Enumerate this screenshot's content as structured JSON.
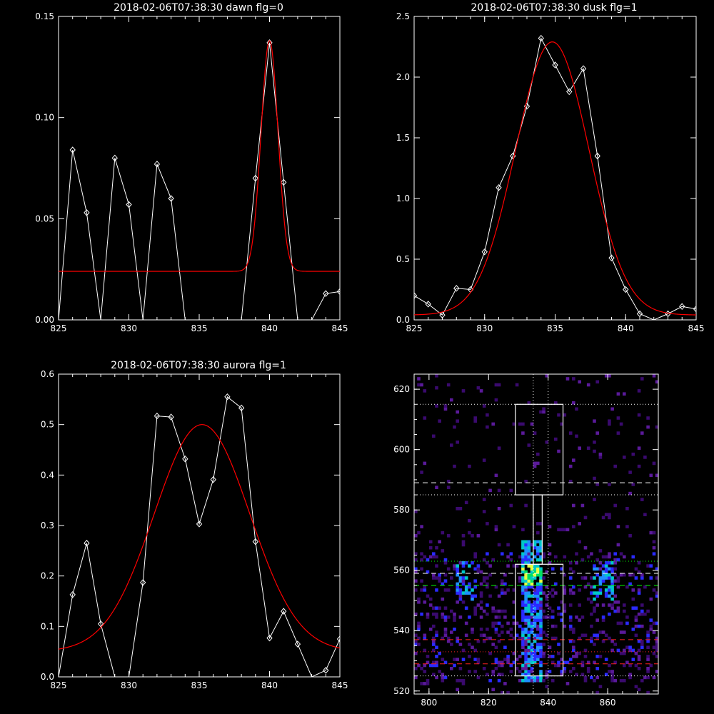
{
  "chart_data": [
    {
      "type": "line",
      "title": "2018-02-06T07:38:30 dawn flg=0",
      "xlim": [
        825,
        845
      ],
      "ylim": [
        0,
        0.15
      ],
      "xticks": [
        825,
        830,
        835,
        840,
        845
      ],
      "yticks": [
        0.0,
        0.05,
        0.1,
        0.15
      ],
      "ytick_labels": [
        "0.00",
        "0.05",
        "0.10",
        "0.15"
      ],
      "series": [
        {
          "color": "#ffffff",
          "markers": "diamond",
          "x": [
            825,
            826,
            827,
            828,
            829,
            830,
            831,
            832,
            833,
            834,
            835,
            836,
            837,
            838,
            839,
            840,
            841,
            842,
            843,
            844,
            845
          ],
          "y": [
            0.0,
            0.084,
            0.053,
            0.0,
            0.08,
            0.057,
            0.0,
            0.077,
            0.06,
            0.0,
            0.0,
            0.0,
            0.0,
            0.0,
            0.07,
            0.137,
            0.068,
            0.0,
            0.0,
            0.013,
            0.014
          ]
        },
        {
          "color": "#ff0000",
          "fit": "gaussian",
          "baseline": 0.024,
          "amplitude": 0.114,
          "center": 840.0,
          "sigma": 0.6
        }
      ]
    },
    {
      "type": "line",
      "title": "2018-02-06T07:38:30 dusk flg=1",
      "xlim": [
        825,
        845
      ],
      "ylim": [
        0,
        2.5
      ],
      "xticks": [
        825,
        830,
        835,
        840,
        845
      ],
      "yticks": [
        0.0,
        0.5,
        1.0,
        1.5,
        2.0,
        2.5
      ],
      "ytick_labels": [
        "0.0",
        "0.5",
        "1.0",
        "1.5",
        "2.0",
        "2.5"
      ],
      "series": [
        {
          "color": "#ffffff",
          "markers": "diamond",
          "x": [
            825,
            826,
            827,
            828,
            829,
            830,
            831,
            832,
            833,
            834,
            835,
            836,
            837,
            838,
            839,
            840,
            841,
            842,
            843,
            844,
            845
          ],
          "y": [
            0.2,
            0.13,
            0.04,
            0.26,
            0.25,
            0.56,
            1.09,
            1.35,
            1.76,
            2.32,
            2.1,
            1.88,
            2.07,
            1.35,
            0.51,
            0.25,
            0.05,
            0.0,
            0.05,
            0.11,
            0.09
          ]
        },
        {
          "color": "#ff0000",
          "fit": "gaussian",
          "baseline": 0.04,
          "amplitude": 2.25,
          "center": 834.8,
          "sigma": 2.6
        }
      ]
    },
    {
      "type": "line",
      "title": "2018-02-06T07:38:30 aurora flg=1",
      "xlim": [
        825,
        845
      ],
      "ylim": [
        0,
        0.6
      ],
      "xticks": [
        825,
        830,
        835,
        840,
        845
      ],
      "yticks": [
        0.0,
        0.1,
        0.2,
        0.3,
        0.4,
        0.5,
        0.6
      ],
      "ytick_labels": [
        "0.0",
        "0.1",
        "0.2",
        "0.3",
        "0.4",
        "0.5",
        "0.6"
      ],
      "series": [
        {
          "color": "#ffffff",
          "markers": "diamond",
          "x": [
            825,
            826,
            827,
            828,
            829,
            830,
            831,
            832,
            833,
            834,
            835,
            836,
            837,
            838,
            839,
            840,
            841,
            842,
            843,
            844,
            845
          ],
          "y": [
            0.0,
            0.163,
            0.265,
            0.105,
            0.0,
            0.0,
            0.187,
            0.517,
            0.515,
            0.432,
            0.303,
            0.391,
            0.555,
            0.533,
            0.268,
            0.077,
            0.13,
            0.065,
            0.0,
            0.013,
            0.075
          ]
        },
        {
          "color": "#ff0000",
          "fit": "gaussian",
          "baseline": 0.05,
          "amplitude": 0.45,
          "center": 835.2,
          "sigma": 3.4
        }
      ]
    },
    {
      "type": "heatmap",
      "xlim": [
        795,
        877
      ],
      "ylim": [
        519,
        625
      ],
      "xticks": [
        800,
        820,
        840,
        860
      ],
      "yticks": [
        520,
        540,
        560,
        580,
        600,
        620
      ],
      "colormap": "rainbow",
      "bright_column_center": 834,
      "bright_row_center": 558,
      "vertical_dotted_lines": [
        835,
        840
      ],
      "horizontal_dotted_lines": [
        615,
        585,
        525
      ],
      "white_dashed_lines": [
        589,
        559
      ],
      "green_dotted_lines": [
        563
      ],
      "green_dashed_lines": [
        555
      ],
      "red_dashed_lines": [
        537,
        529
      ],
      "red_dotted_lines": [
        533
      ],
      "upper_box": {
        "x": [
          829,
          845
        ],
        "y": [
          585,
          615
        ]
      },
      "lower_box": {
        "x": [
          829,
          845
        ],
        "y": [
          525,
          562
        ]
      },
      "connector": {
        "x": [
          835,
          838
        ],
        "y": [
          562,
          585
        ]
      }
    }
  ]
}
